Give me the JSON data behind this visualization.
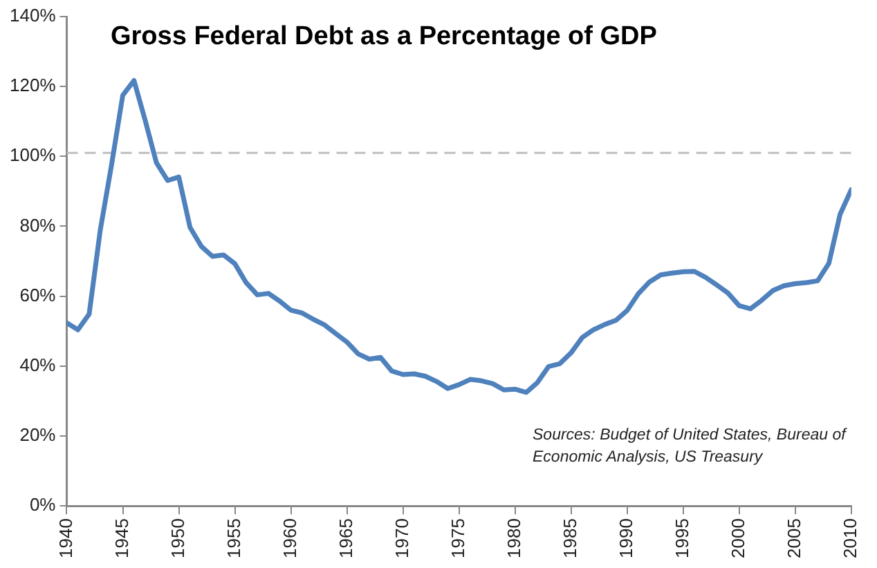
{
  "chart_data": {
    "type": "line",
    "title": "Gross Federal Debt as a Percentage of GDP",
    "annotations": [
      "Sources: Budget of United States, Bureau of Economic Analysis, US Treasury"
    ],
    "x": [
      1940,
      1941,
      1942,
      1943,
      1944,
      1945,
      1946,
      1947,
      1948,
      1949,
      1950,
      1951,
      1952,
      1953,
      1954,
      1955,
      1956,
      1957,
      1958,
      1959,
      1960,
      1961,
      1962,
      1963,
      1964,
      1965,
      1966,
      1967,
      1968,
      1969,
      1970,
      1971,
      1972,
      1973,
      1974,
      1975,
      1976,
      1977,
      1978,
      1979,
      1980,
      1981,
      1982,
      1983,
      1984,
      1985,
      1986,
      1987,
      1988,
      1989,
      1990,
      1991,
      1992,
      1993,
      1994,
      1995,
      1996,
      1997,
      1998,
      1999,
      2000,
      2001,
      2002,
      2003,
      2004,
      2005,
      2006,
      2007,
      2008,
      2009,
      2010
    ],
    "series": [
      {
        "color": "#4f81bd",
        "values": [
          52.4,
          50.4,
          54.9,
          79.1,
          97.6,
          117.5,
          121.7,
          110.3,
          98.2,
          93.1,
          94.1,
          79.7,
          74.3,
          71.4,
          71.8,
          69.3,
          63.9,
          60.4,
          60.8,
          58.6,
          56.0,
          55.2,
          53.4,
          51.8,
          49.3,
          46.9,
          43.5,
          42.0,
          42.5,
          38.6,
          37.6,
          37.8,
          37.1,
          35.6,
          33.6,
          34.7,
          36.2,
          35.8,
          35.0,
          33.2,
          33.4,
          32.5,
          35.3,
          39.9,
          40.7,
          43.8,
          48.2,
          50.4,
          51.9,
          53.1,
          55.9,
          60.7,
          64.1,
          66.1,
          66.6,
          67.0,
          67.1,
          65.4,
          63.2,
          60.9,
          57.3,
          56.4,
          58.8,
          61.6,
          63.0,
          63.6,
          63.9,
          64.4,
          69.4,
          83.4,
          90.5
        ]
      }
    ],
    "xlim": [
      1940,
      2010
    ],
    "xticks": [
      1940,
      1945,
      1950,
      1955,
      1960,
      1965,
      1970,
      1975,
      1980,
      1985,
      1990,
      1995,
      2000,
      2005,
      2010
    ],
    "ylim": [
      0,
      140
    ],
    "yticks": [
      {
        "value": 0,
        "label": "0%"
      },
      {
        "value": 20,
        "label": "20%"
      },
      {
        "value": 40,
        "label": "40%"
      },
      {
        "value": 60,
        "label": "60%"
      },
      {
        "value": 80,
        "label": "80%"
      },
      {
        "value": 100,
        "label": "100%"
      },
      {
        "value": 120,
        "label": "120%"
      },
      {
        "value": 140,
        "label": "140%"
      }
    ],
    "ref_lines": [
      {
        "axis": "y",
        "value": 101,
        "color": "#bfbfbf",
        "line_style": "dashed"
      }
    ],
    "grid": false,
    "legend": false,
    "marker": "none",
    "line_style": "solid"
  }
}
